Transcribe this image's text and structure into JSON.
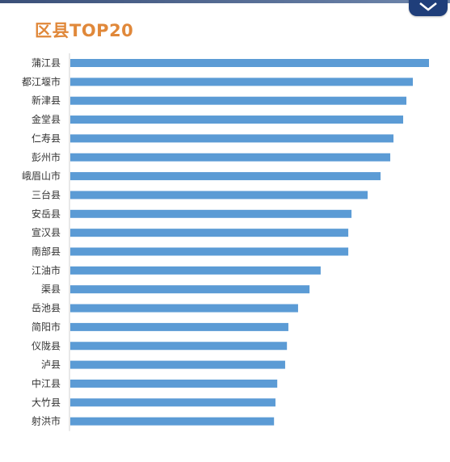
{
  "chart_data": {
    "type": "bar",
    "orientation": "horizontal",
    "title": "区县TOP20",
    "categories": [
      "蒲江县",
      "都江堰市",
      "新津县",
      "金堂县",
      "仁寿县",
      "彭州市",
      "峨眉山市",
      "三台县",
      "安岳县",
      "宣汉县",
      "南部县",
      "江油市",
      "渠县",
      "岳池县",
      "简阳市",
      "仪陇县",
      "泸县",
      "中江县",
      "大竹县",
      "射洪市"
    ],
    "series": [
      {
        "values": [
          100,
          95.5,
          93.7,
          92.8,
          90.1,
          89.2,
          86.5,
          82.9,
          78.4,
          77.5,
          77.5,
          69.8,
          66.7,
          63.5,
          60.8,
          60.4,
          59.9,
          57.7,
          57.2,
          56.8
        ]
      }
    ],
    "xlim": [
      0,
      100
    ],
    "grid": false,
    "legend": "none",
    "bar_color": "#5b9bd5"
  }
}
